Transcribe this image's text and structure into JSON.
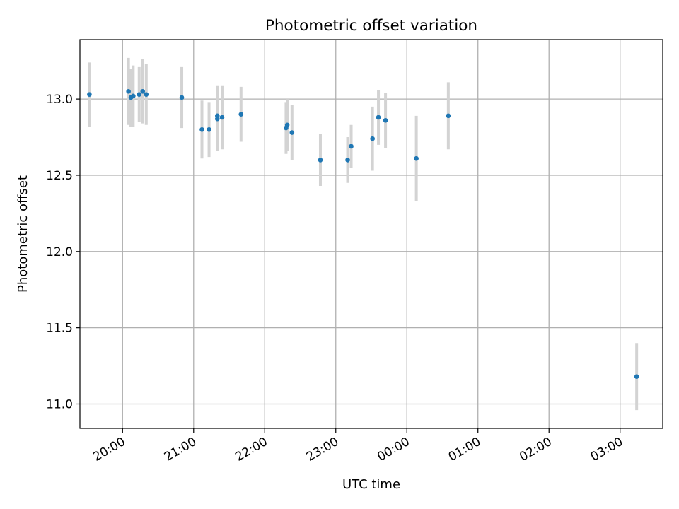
{
  "chart_data": {
    "type": "scatter",
    "title": "Photometric offset variation",
    "xlabel": "UTC time",
    "ylabel": "Photometric offset",
    "grid": true,
    "legend": "none",
    "xlim": [
      "2000-01-01T19:24",
      "2000-01-02T03:36"
    ],
    "ylim": [
      10.84,
      13.39
    ],
    "x_ticks": [
      {
        "t": "2000-01-01T20:00",
        "label": "20:00"
      },
      {
        "t": "2000-01-01T21:00",
        "label": "21:00"
      },
      {
        "t": "2000-01-01T22:00",
        "label": "22:00"
      },
      {
        "t": "2000-01-01T23:00",
        "label": "23:00"
      },
      {
        "t": "2000-01-02T00:00",
        "label": "00:00"
      },
      {
        "t": "2000-01-02T01:00",
        "label": "01:00"
      },
      {
        "t": "2000-01-02T02:00",
        "label": "02:00"
      },
      {
        "t": "2000-01-02T03:00",
        "label": "03:00"
      }
    ],
    "y_ticks": [
      11.0,
      11.5,
      12.0,
      12.5,
      13.0
    ],
    "colors": {
      "point": "#1f77b4",
      "errorbar": "#d3d3d3",
      "grid": "#b0b0b0"
    },
    "points": [
      {
        "t": "2000-01-01T19:32",
        "y": 13.03,
        "err": 0.21
      },
      {
        "t": "2000-01-01T20:05",
        "y": 13.05,
        "err": 0.22
      },
      {
        "t": "2000-01-01T20:07",
        "y": 13.01,
        "err": 0.19
      },
      {
        "t": "2000-01-01T20:09",
        "y": 13.02,
        "err": 0.2
      },
      {
        "t": "2000-01-01T20:14",
        "y": 13.03,
        "err": 0.18
      },
      {
        "t": "2000-01-01T20:17",
        "y": 13.05,
        "err": 0.21
      },
      {
        "t": "2000-01-01T20:20",
        "y": 13.03,
        "err": 0.2
      },
      {
        "t": "2000-01-01T20:50",
        "y": 13.01,
        "err": 0.2
      },
      {
        "t": "2000-01-01T21:07",
        "y": 12.8,
        "err": 0.19
      },
      {
        "t": "2000-01-01T21:13",
        "y": 12.8,
        "err": 0.18
      },
      {
        "t": "2000-01-01T21:20",
        "y": 12.87,
        "err": 0.21
      },
      {
        "t": "2000-01-01T21:20",
        "y": 12.89,
        "err": 0.2
      },
      {
        "t": "2000-01-01T21:24",
        "y": 12.88,
        "err": 0.21
      },
      {
        "t": "2000-01-01T21:40",
        "y": 12.9,
        "err": 0.18
      },
      {
        "t": "2000-01-01T22:18",
        "y": 12.81,
        "err": 0.17
      },
      {
        "t": "2000-01-01T22:19",
        "y": 12.83,
        "err": 0.17
      },
      {
        "t": "2000-01-01T22:23",
        "y": 12.78,
        "err": 0.18
      },
      {
        "t": "2000-01-01T22:47",
        "y": 12.6,
        "err": 0.17
      },
      {
        "t": "2000-01-01T23:10",
        "y": 12.6,
        "err": 0.15
      },
      {
        "t": "2000-01-01T23:13",
        "y": 12.69,
        "err": 0.14
      },
      {
        "t": "2000-01-01T23:31",
        "y": 12.74,
        "err": 0.21
      },
      {
        "t": "2000-01-01T23:36",
        "y": 12.88,
        "err": 0.18
      },
      {
        "t": "2000-01-01T23:42",
        "y": 12.86,
        "err": 0.18
      },
      {
        "t": "2000-01-02T00:08",
        "y": 12.61,
        "err": 0.28
      },
      {
        "t": "2000-01-02T00:35",
        "y": 12.89,
        "err": 0.22
      },
      {
        "t": "2000-01-02T03:14",
        "y": 11.18,
        "err": 0.22
      }
    ]
  }
}
